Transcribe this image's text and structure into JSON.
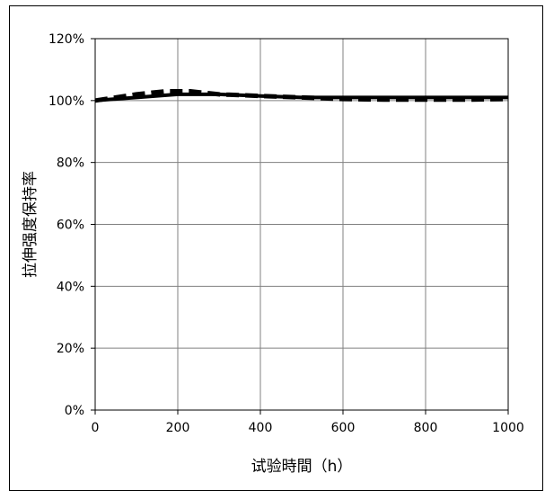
{
  "chart_data": {
    "type": "line",
    "xlabel": "试验時間（h）",
    "ylabel": "拉伸强度保持率",
    "xlim": [
      0,
      1000
    ],
    "ylim": [
      0,
      1.2
    ],
    "x_ticks": [
      "0",
      "200",
      "400",
      "600",
      "800",
      "1000"
    ],
    "y_ticks": [
      "0%",
      "20%",
      "40%",
      "60%",
      "80%",
      "100%",
      "120%"
    ],
    "grid": true,
    "legend": "none",
    "series": [
      {
        "style": "solid",
        "color": "#000000",
        "x": [
          0,
          100,
          200,
          300,
          400,
          500,
          600,
          700,
          800,
          900,
          1000
        ],
        "y": [
          1.0,
          1.01,
          1.02,
          1.02,
          1.015,
          1.01,
          1.01,
          1.01,
          1.01,
          1.01,
          1.01
        ]
      },
      {
        "style": "dashed",
        "color": "#000000",
        "x": [
          0,
          100,
          170,
          230,
          300,
          400,
          500,
          600,
          700,
          800,
          900,
          1000
        ],
        "y": [
          1.0,
          1.02,
          1.03,
          1.03,
          1.02,
          1.015,
          1.01,
          1.005,
          1.003,
          1.003,
          1.003,
          1.005
        ]
      }
    ]
  }
}
